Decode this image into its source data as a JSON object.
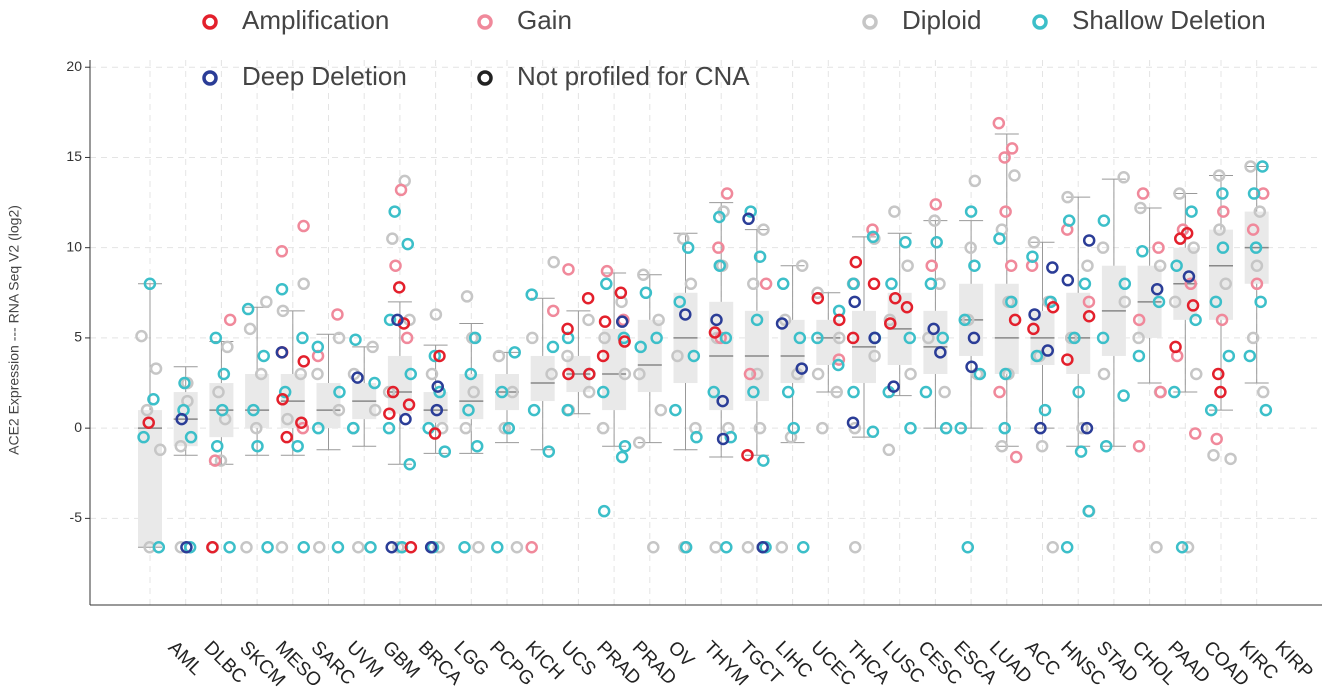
{
  "chart_data": {
    "type": "box",
    "y_label": "ACE2 Expression --- RNA Seq V2 (log2)",
    "categories": [
      "AML",
      "DLBC",
      "SKCM",
      "MESO",
      "SARC",
      "UVM",
      "GBM",
      "BRCA",
      "LGG",
      "PCPG",
      "KICH",
      "UCS",
      "PRAD",
      "PRAD",
      "OV",
      "THYM",
      "TGCT",
      "LIHC",
      "UCEC",
      "THCA",
      "LUSC",
      "CESC",
      "ESCA",
      "LUAD",
      "ACC",
      "HNSC",
      "STAD",
      "CHOL",
      "PAAD",
      "COAD",
      "KIRC",
      "KIRP"
    ],
    "ylim": [
      -9.8,
      20.4
    ],
    "yticks": [
      -5,
      0,
      5,
      10,
      15,
      20
    ],
    "grid": true,
    "boxes": [
      {
        "low": -6.6,
        "q1": -6.6,
        "median": 0,
        "q3": 1,
        "high": 8
      },
      {
        "low": -1.5,
        "q1": -1,
        "median": 0.5,
        "q3": 2,
        "high": 3.4
      },
      {
        "low": -2,
        "q1": -0.5,
        "median": 1,
        "q3": 2.5,
        "high": 4.8
      },
      {
        "low": -1.5,
        "q1": 0,
        "median": 1,
        "q3": 3,
        "high": 6.7
      },
      {
        "low": -1.5,
        "q1": 0,
        "median": 1.5,
        "q3": 3,
        "high": 6.5
      },
      {
        "low": -1.2,
        "q1": 0,
        "median": 1,
        "q3": 2.5,
        "high": 5.2
      },
      {
        "low": -1,
        "q1": 0.5,
        "median": 1.5,
        "q3": 2.5,
        "high": 4.5
      },
      {
        "low": -2,
        "q1": 0.8,
        "median": 2,
        "q3": 4,
        "high": 7
      },
      {
        "low": -1.4,
        "q1": 0.3,
        "median": 1,
        "q3": 2,
        "high": 4.6
      },
      {
        "low": -1.4,
        "q1": 0.5,
        "median": 1.5,
        "q3": 3,
        "high": 5.8
      },
      {
        "low": -0.8,
        "q1": 1,
        "median": 2,
        "q3": 3,
        "high": 4.2
      },
      {
        "low": -1.2,
        "q1": 1.5,
        "median": 2.5,
        "q3": 4,
        "high": 7.2
      },
      {
        "low": 0.8,
        "q1": 2,
        "median": 3,
        "q3": 4,
        "high": 6.5
      },
      {
        "low": -1,
        "q1": 1,
        "median": 3,
        "q3": 5.5,
        "high": 8.6
      },
      {
        "low": -0.8,
        "q1": 2,
        "median": 3.5,
        "q3": 6,
        "high": 8.5
      },
      {
        "low": -1.2,
        "q1": 2.5,
        "median": 5,
        "q3": 7.5,
        "high": 10.8
      },
      {
        "low": -1.6,
        "q1": 1,
        "median": 4,
        "q3": 7,
        "high": 12.5
      },
      {
        "low": -1.5,
        "q1": 1.5,
        "median": 4,
        "q3": 6.5,
        "high": 11
      },
      {
        "low": -0.8,
        "q1": 2.5,
        "median": 4,
        "q3": 6,
        "high": 9
      },
      {
        "low": 2,
        "q1": 3.5,
        "median": 5,
        "q3": 6,
        "high": 7.5
      },
      {
        "low": -0.5,
        "q1": 2.5,
        "median": 4.5,
        "q3": 6.5,
        "high": 10.6
      },
      {
        "low": 1.8,
        "q1": 3.5,
        "median": 5.5,
        "q3": 7.5,
        "high": 10.8
      },
      {
        "low": 0,
        "q1": 3,
        "median": 4.5,
        "q3": 6.5,
        "high": 11.5
      },
      {
        "low": 0,
        "q1": 4,
        "median": 6,
        "q3": 8,
        "high": 11.5
      },
      {
        "low": -1,
        "q1": 3,
        "median": 5,
        "q3": 8,
        "high": 16.3
      },
      {
        "low": 0,
        "q1": 3.5,
        "median": 5,
        "q3": 6.5,
        "high": 10.3
      },
      {
        "low": -1,
        "q1": 3,
        "median": 5,
        "q3": 7.5,
        "high": 12.8
      },
      {
        "low": -1,
        "q1": 4,
        "median": 6.5,
        "q3": 9,
        "high": 13.8
      },
      {
        "low": 2.5,
        "q1": 5,
        "median": 7,
        "q3": 9,
        "high": 12.2
      },
      {
        "low": 2,
        "q1": 6,
        "median": 8,
        "q3": 10,
        "high": 13
      },
      {
        "low": 1,
        "q1": 6,
        "median": 9,
        "q3": 11,
        "high": 14
      },
      {
        "low": 2.5,
        "q1": 8,
        "median": 10,
        "q3": 12,
        "high": 14.5
      }
    ],
    "series": [
      {
        "name": "Amplification",
        "color": "#e3202c",
        "values": [
          [
            0.3
          ],
          [],
          [
            -6.6
          ],
          [],
          [
            4.2,
            3.7,
            1.6,
            0.3,
            -0.5
          ],
          [],
          [],
          [
            7.8,
            5.8,
            2,
            1.3,
            0.8,
            -6.6
          ],
          [
            4,
            -0.3
          ],
          [],
          [],
          [],
          [
            7.2,
            5.5,
            3,
            3
          ],
          [
            7.5,
            5.9,
            4.8,
            4
          ],
          [],
          [],
          [
            5.3
          ],
          [
            -1.5
          ],
          [],
          [
            7.2,
            6
          ],
          [
            9.2,
            8,
            5
          ],
          [
            7.2,
            6.7,
            5.8
          ],
          [],
          [],
          [
            6
          ],
          [
            6.7,
            5.5
          ],
          [
            6.2,
            3.8
          ],
          [],
          [],
          [
            10.8,
            10.5,
            6.8,
            4.5
          ],
          [
            3,
            2
          ],
          []
        ]
      },
      {
        "name": "Gain",
        "color": "#f0899b",
        "values": [
          [],
          [],
          [
            6,
            -1.8
          ],
          [],
          [
            11.2,
            9.8,
            0
          ],
          [
            6.3,
            4
          ],
          [],
          [
            13.2,
            9,
            5
          ],
          [],
          [],
          [],
          [
            -6.6,
            6.5
          ],
          [
            8.8
          ],
          [
            8.7,
            6
          ],
          [],
          [],
          [
            13,
            10,
            5
          ],
          [
            8,
            3
          ],
          [],
          [
            3.8
          ],
          [
            11,
            8
          ],
          [],
          [
            12.4,
            9
          ],
          [],
          [
            16.9,
            15.5,
            15,
            12,
            9,
            2,
            -1.6
          ],
          [
            9
          ],
          [
            11,
            7
          ],
          [],
          [
            13,
            10,
            6,
            2,
            -1
          ],
          [
            11,
            8,
            4,
            -0.3
          ],
          [
            12,
            6,
            -0.6
          ],
          [
            13,
            11,
            8
          ]
        ]
      },
      {
        "name": "Diploid",
        "color": "#c6c6c6",
        "values": [
          [
            -6.6,
            1,
            3.3,
            5.1,
            -1.2
          ],
          [
            -6.6,
            2.5,
            1.5,
            -1
          ],
          [
            -6.6,
            4.5,
            2,
            -1.8,
            0.5
          ],
          [
            -6.6,
            7,
            5.5,
            3,
            0
          ],
          [
            -6.6,
            8,
            6.5,
            3,
            0.5
          ],
          [
            -6.6,
            5,
            3,
            1
          ],
          [
            -6.6,
            4.5,
            3,
            1,
            0
          ],
          [
            -6.6,
            13.7,
            10.5,
            6,
            2
          ],
          [
            -6.6,
            6.3,
            3,
            0
          ],
          [
            -6.6,
            7.3,
            5,
            2,
            0
          ],
          [
            -6.6,
            4,
            2,
            0
          ],
          [
            9.2,
            5,
            3
          ],
          [
            6,
            4,
            2,
            1
          ],
          [
            7,
            5,
            3,
            0
          ],
          [
            -6.6,
            8.5,
            6,
            3,
            1,
            -0.8
          ],
          [
            -6.6,
            10.5,
            8,
            4,
            0
          ],
          [
            -6.6,
            12,
            9,
            5,
            0
          ],
          [
            -6.6,
            11,
            8,
            3,
            0
          ],
          [
            -6.6,
            9,
            6,
            3,
            -0.5
          ],
          [
            7.5,
            5,
            3,
            2,
            0
          ],
          [
            -6.6,
            10.5,
            8,
            4,
            0
          ],
          [
            12,
            9,
            6,
            3,
            -1.2
          ],
          [
            11.5,
            8,
            5,
            2
          ],
          [
            13.7,
            10,
            6,
            3
          ],
          [
            14,
            11,
            7,
            3,
            -1
          ],
          [
            -6.6,
            10.3,
            7,
            4,
            -1
          ],
          [
            -4.6,
            12.8,
            9,
            5,
            0
          ],
          [
            13.9,
            10,
            7,
            3
          ],
          [
            -6.6,
            12.2,
            9,
            5,
            2
          ],
          [
            -6.6,
            13,
            10,
            7,
            3
          ],
          [
            14,
            11,
            8,
            -1.5,
            -1.7
          ],
          [
            14.5,
            12,
            9,
            5,
            2
          ]
        ]
      },
      {
        "name": "Shallow Deletion",
        "color": "#3cbfc9",
        "values": [
          [
            8,
            1.6,
            -0.5,
            -6.6
          ],
          [
            -6.6,
            2.5,
            1,
            -0.5
          ],
          [
            -6.6,
            5,
            3,
            1,
            -1
          ],
          [
            -6.6,
            6.6,
            4,
            1,
            -1
          ],
          [
            -6.6,
            7.7,
            5,
            2,
            -1
          ],
          [
            -6.6,
            4.5,
            2,
            0
          ],
          [
            -6.6,
            4.9,
            2.5,
            0
          ],
          [
            -6.6,
            12,
            10.2,
            6,
            3,
            0,
            -2
          ],
          [
            -6.6,
            4,
            2,
            0,
            -1.3
          ],
          [
            -6.6,
            5,
            3,
            1,
            -1
          ],
          [
            -6.6,
            4.2,
            2,
            0
          ],
          [
            7.4,
            4.5,
            1,
            -1.3
          ],
          [
            5,
            3,
            1
          ],
          [
            8,
            5,
            2,
            -1,
            -4.6,
            -1.6
          ],
          [
            7.5,
            5,
            4.5
          ],
          [
            -6.6,
            10,
            7,
            4,
            1,
            -0.5
          ],
          [
            -6.6,
            11.7,
            9,
            5,
            2,
            -0.5
          ],
          [
            -6.6,
            12,
            9.5,
            6,
            2,
            -1.8
          ],
          [
            -6.6,
            8,
            5,
            2,
            0
          ],
          [
            6.5,
            5,
            3.5
          ],
          [
            10.6,
            8,
            5,
            2,
            -0.2
          ],
          [
            10.3,
            8,
            5,
            2,
            0
          ],
          [
            10.3,
            8,
            5,
            2,
            0
          ],
          [
            -6.6,
            12,
            9,
            6,
            3,
            0
          ],
          [
            10.5,
            7,
            3,
            0
          ],
          [
            9.5,
            7,
            4,
            1
          ],
          [
            -6.6,
            -4.6,
            11.5,
            8,
            5,
            2,
            -1.3
          ],
          [
            11.5,
            8,
            5,
            1.8,
            -1
          ],
          [
            9.8,
            7,
            4
          ],
          [
            -6.6,
            12,
            9,
            6,
            2
          ],
          [
            13,
            10,
            7,
            4,
            1
          ],
          [
            14.5,
            13,
            10,
            7,
            4,
            1
          ]
        ]
      },
      {
        "name": "Deep Deletion",
        "color": "#2b3d97",
        "values": [
          [],
          [
            0.5,
            -6.6
          ],
          [],
          [],
          [
            4.2
          ],
          [],
          [
            2.8
          ],
          [
            6,
            0.5,
            -6.6
          ],
          [
            2.3,
            1,
            -6.6
          ],
          [],
          [],
          [],
          [],
          [
            5.9
          ],
          [],
          [
            6.3
          ],
          [
            6,
            1.5,
            -0.6
          ],
          [
            11.6,
            -6.6
          ],
          [
            5.8,
            3.3
          ],
          [],
          [
            7,
            5,
            0.3
          ],
          [
            2.3
          ],
          [
            5.5,
            4.2
          ],
          [
            5,
            3.4
          ],
          [],
          [
            8.9,
            6.3,
            4.3,
            0
          ],
          [
            10.4,
            8.2,
            0
          ],
          [],
          [
            7.7
          ],
          [
            8.4
          ],
          [],
          []
        ]
      },
      {
        "name": "Not profiled for CNA",
        "color": "#222222",
        "values": [
          [],
          [],
          [],
          [],
          [],
          [],
          [],
          [],
          [],
          [],
          [],
          [],
          [],
          [],
          [],
          [],
          [],
          [],
          [],
          [],
          [],
          [],
          [],
          [],
          [],
          [],
          [],
          [],
          [],
          [],
          [],
          []
        ]
      }
    ]
  }
}
